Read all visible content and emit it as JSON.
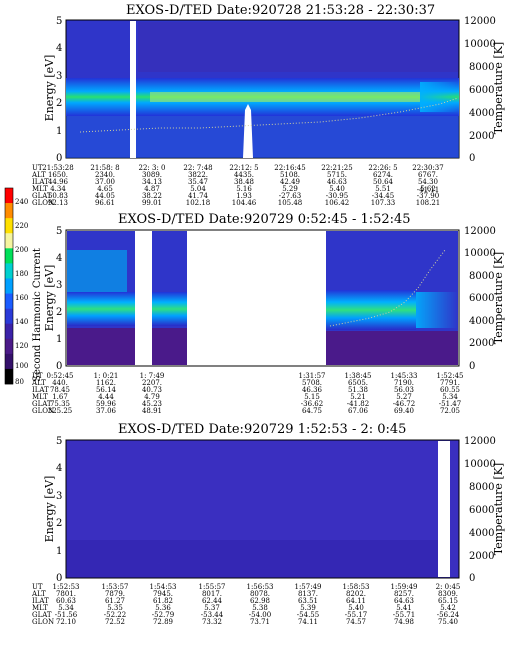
{
  "colorbar": {
    "label": "Second Harmonic Current",
    "ticks": [
      "240",
      "220",
      "200",
      "180",
      "160",
      "140",
      "120",
      "100",
      "80"
    ],
    "colors": [
      "#ff0000",
      "#ff8c00",
      "#ffe000",
      "#f5f5a0",
      "#00e05a",
      "#00d0d0",
      "#00a0ff",
      "#1a5cff",
      "#2a3ad8",
      "#3b22a8",
      "#4b1a88",
      "#34106a",
      "#000000"
    ]
  },
  "chart_data": [
    {
      "type": "heatmap",
      "title": "EXOS-D/TED   Date:920728  21:53:28 - 22:30:37",
      "ylabel": "Energy [eV]",
      "ylabel_right": "Temperature [K]",
      "ylim": [
        0,
        5
      ],
      "yticks": [
        "5",
        "4",
        "3",
        "2",
        "1",
        "0"
      ],
      "y2lim": [
        0,
        12000
      ],
      "y2ticks": [
        "12000",
        "10000",
        "8000",
        "6000",
        "4000",
        "2000",
        "0"
      ],
      "ephemeris": {
        "labels": [
          "UT",
          "ALT",
          "ILAT",
          "MLT",
          "GLAT",
          "GLON"
        ],
        "columns": [
          [
            "21:53:28",
            "1650.",
            "44.96",
            "4.34",
            "50.83",
            "92.13"
          ],
          [
            "21:58: 8",
            "2340.",
            "37.00",
            "4.65",
            "44.05",
            "96.61"
          ],
          [
            "22: 3: 0",
            "3089.",
            "34.13",
            "4.87",
            "38.22",
            "99.01"
          ],
          [
            "22: 7:48",
            "3822.",
            "35.47",
            "5.04",
            "41.74",
            "102.18"
          ],
          [
            "22:12: 5",
            "4435.",
            "38.48",
            "5.16",
            "1.93",
            "104.46"
          ],
          [
            "22:16:45",
            "5108.",
            "42.49",
            "5.29",
            "-27.63",
            "105.48"
          ],
          [
            "22:21:25",
            "5715.",
            "46.63",
            "5.40",
            "-30.95",
            "106.42"
          ],
          [
            "22:26: 5",
            "6274.",
            "50.64",
            "5.51",
            "-34.45",
            "107.33"
          ],
          [
            "22:30:37",
            "6767.",
            "54.30",
            "5.62",
            "-37.90",
            "108.21"
          ],
          [
            "",
            "",
            "",
            "",
            "-41.11",
            ""
          ]
        ]
      }
    },
    {
      "type": "heatmap",
      "title": "EXOS-D/TED   Date:920729   0:52:45 - 1:52:45",
      "ylabel": "Energy [eV]",
      "ylabel_right": "Temperature [K]",
      "ylim": [
        0,
        5
      ],
      "yticks": [
        "5",
        "4",
        "3",
        "2",
        "1",
        "0"
      ],
      "y2lim": [
        0,
        12000
      ],
      "y2ticks": [
        "12000",
        "10000",
        "8000",
        "6000",
        "4000",
        "2000",
        "0"
      ],
      "ephemeris": {
        "labels": [
          "UT",
          "ALT",
          "ILAT",
          "MLT",
          "GLAT",
          "GLON"
        ],
        "columns": [
          [
            "0:52:45",
            "440.",
            "78.45",
            "1.67",
            "75.35",
            "325.25"
          ],
          [
            "1: 0:21",
            "1162.",
            "56.14",
            "4.44",
            "59.96",
            "37.06"
          ],
          [
            "1: 7:49",
            "2207.",
            "40.73",
            "4.79",
            "45.23",
            "48.91"
          ],
          [
            "1:31:57",
            "5708.",
            "46.36",
            "5.15",
            "-36.62",
            "64.75"
          ],
          [
            "1:38:45",
            "6505.",
            "51.38",
            "5.21",
            "-41.82",
            "67.06"
          ],
          [
            "1:45:33",
            "7190.",
            "56.03",
            "5.27",
            "-46.72",
            "69.40"
          ],
          [
            "1:52:45",
            "7791.",
            "60.55",
            "5.34",
            "-51.47",
            "72.05"
          ]
        ]
      }
    },
    {
      "type": "heatmap",
      "title": "EXOS-D/TED   Date:920729   1:52:53 - 2: 0:45",
      "ylabel": "Energy [eV]",
      "ylabel_right": "Temperature [K]",
      "ylim": [
        0,
        5
      ],
      "yticks": [
        "5",
        "4",
        "3",
        "2",
        "1",
        "0"
      ],
      "y2lim": [
        0,
        12000
      ],
      "y2ticks": [
        "12000",
        "10000",
        "8000",
        "6000",
        "4000",
        "2000",
        "0"
      ],
      "ephemeris": {
        "labels": [
          "UT",
          "ALT",
          "ILAT",
          "MLT",
          "GLAT",
          "GLON"
        ],
        "columns": [
          [
            "1:52:53",
            "7801.",
            "60.63",
            "5.34",
            "-51.56",
            "72.10"
          ],
          [
            "1:53:57",
            "7879.",
            "61.27",
            "5.35",
            "-52.22",
            "72.52"
          ],
          [
            "1:54:53",
            "7945.",
            "61.82",
            "5.36",
            "-52.79",
            "72.89"
          ],
          [
            "1:55:57",
            "8017.",
            "62.44",
            "5.37",
            "-53.44",
            "73.32"
          ],
          [
            "1:56:53",
            "8078.",
            "62.98",
            "5.38",
            "-54.00",
            "73.71"
          ],
          [
            "1:57:49",
            "8137.",
            "63.51",
            "5.39",
            "-54.55",
            "74.11"
          ],
          [
            "1:58:53",
            "8202.",
            "64.11",
            "5.40",
            "-55.17",
            "74.57"
          ],
          [
            "1:59:49",
            "8257.",
            "64.63",
            "5.41",
            "-55.71",
            "74.98"
          ],
          [
            "2: 0:45",
            "8309.",
            "65.15",
            "5.42",
            "-56.24",
            "75.40"
          ]
        ]
      }
    }
  ]
}
